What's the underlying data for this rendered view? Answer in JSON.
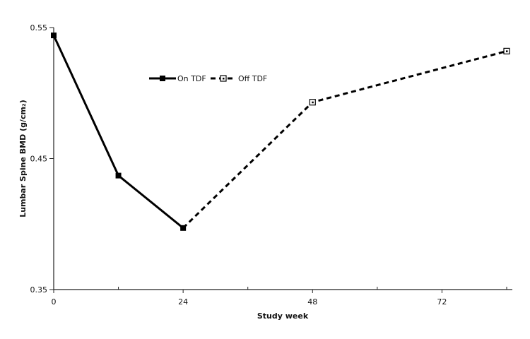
{
  "chart_data": {
    "type": "line",
    "title": "",
    "xlabel": "Study week",
    "ylabel": "Lumbar Spine BMD (g/cm₂)",
    "xlim": [
      0,
      84
    ],
    "ylim": [
      0.35,
      0.55
    ],
    "x_ticks": [
      0,
      24,
      48,
      72
    ],
    "x_minor_ticks": [
      12,
      36,
      60,
      84
    ],
    "y_ticks": [
      0.35,
      0.45,
      0.55
    ],
    "x_tick_labels": [
      "0",
      "24",
      "48",
      "72"
    ],
    "y_tick_labels": [
      "0.35",
      "0.45",
      "0.55"
    ],
    "grid": false,
    "legend_position": "top-left",
    "series": [
      {
        "name": "On TDF",
        "line_style": "solid",
        "marker": "filled-square",
        "color": "#000000",
        "x": [
          0,
          12,
          24
        ],
        "y": [
          0.544,
          0.437,
          0.397
        ]
      },
      {
        "name": "Off TDF",
        "line_style": "dashed",
        "marker": "open-square",
        "color": "#000000",
        "x": [
          24,
          48,
          84
        ],
        "y": [
          0.397,
          0.493,
          0.532
        ]
      }
    ]
  }
}
